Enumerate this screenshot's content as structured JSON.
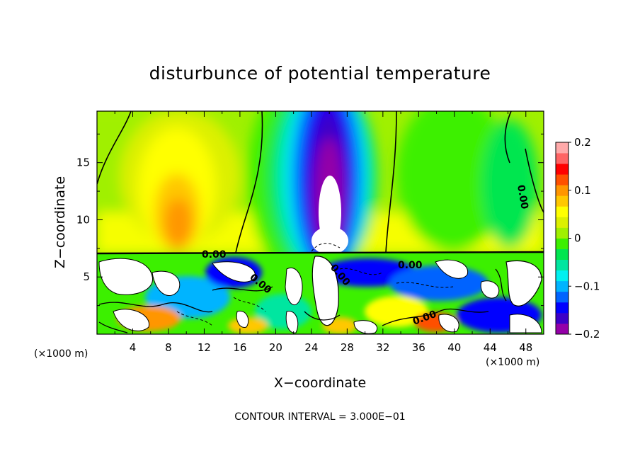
{
  "chart_data": {
    "type": "heatmap",
    "title": "disturbunce of potential temperature",
    "xlabel": "X−coordinate",
    "ylabel": "Z−coordinate",
    "x_unit": "(×1000 m)",
    "x_ticks": [
      4,
      8,
      12,
      16,
      20,
      24,
      28,
      32,
      36,
      40,
      44,
      48
    ],
    "y_ticks": [
      5,
      10,
      15
    ],
    "xlim": [
      0,
      50
    ],
    "ylim": [
      0,
      19.5
    ],
    "colorbar": {
      "ticks": [
        0.2,
        0.1,
        0,
        -0.1,
        -0.2
      ],
      "tick_labels": [
        "0.2",
        "0.1",
        "0",
        "−0.1",
        "−0.2"
      ],
      "range": [
        -0.2,
        0.2
      ],
      "colors": [
        "#9400a8",
        "#3c00c8",
        "#0000ff",
        "#0064ff",
        "#00b4ff",
        "#00f0f0",
        "#00e6a0",
        "#00e650",
        "#3cf000",
        "#a0f000",
        "#dcf000",
        "#ffff00",
        "#ffc800",
        "#ff9600",
        "#ff5000",
        "#ff0000",
        "#ff6464",
        "#ffaaaa"
      ]
    },
    "contour_labels": [
      "0.00",
      "0.00",
      "0.00",
      "0.00",
      "0.00",
      "0.00"
    ],
    "footer": "CONTOUR INTERVAL = 3.000E−01",
    "features": [
      {
        "kind": "cold_core",
        "x": 26,
        "z": 11,
        "value": -0.25
      },
      {
        "kind": "warm_core",
        "x": 9.5,
        "z": 11,
        "value": 0.11
      }
    ]
  }
}
